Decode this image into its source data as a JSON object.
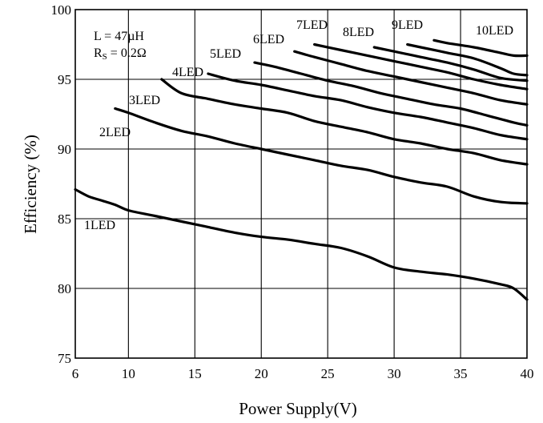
{
  "chart_data": {
    "type": "line",
    "title": "",
    "xlabel": "Power Supply(V)",
    "ylabel": "Efficiency (%)",
    "xlim": [
      6,
      40
    ],
    "ylim": [
      75,
      100
    ],
    "xticks": [
      6,
      10,
      15,
      20,
      25,
      30,
      35,
      40
    ],
    "yticks": [
      75,
      80,
      85,
      90,
      95,
      100
    ],
    "grid": true,
    "annotations": [
      "L = 47µH",
      "R",
      "S",
      " = 0.2Ω"
    ],
    "series": [
      {
        "name": "1LED",
        "x": [
          6,
          7,
          8,
          9,
          10,
          12,
          14,
          16,
          18,
          20,
          22,
          24,
          26,
          28,
          30,
          32,
          34,
          36,
          38,
          39,
          40
        ],
        "y": [
          87.1,
          86.6,
          86.3,
          86.0,
          85.6,
          85.2,
          84.8,
          84.4,
          84.0,
          83.7,
          83.5,
          83.2,
          82.9,
          82.3,
          81.5,
          81.2,
          81.0,
          80.7,
          80.3,
          80.0,
          79.2
        ]
      },
      {
        "name": "2LED",
        "x": [
          9,
          10,
          12,
          14,
          16,
          18,
          20,
          22,
          24,
          26,
          28,
          30,
          32,
          34,
          36,
          38,
          40
        ],
        "y": [
          92.9,
          92.6,
          91.9,
          91.3,
          90.9,
          90.4,
          90.0,
          89.6,
          89.2,
          88.8,
          88.5,
          88.0,
          87.6,
          87.3,
          86.6,
          86.2,
          86.1
        ]
      },
      {
        "name": "3LED",
        "x": [
          12.5,
          14,
          16,
          18,
          20,
          22,
          24,
          26,
          28,
          30,
          32,
          34,
          36,
          38,
          40
        ],
        "y": [
          95.0,
          94.0,
          93.6,
          93.2,
          92.9,
          92.6,
          92.0,
          91.6,
          91.2,
          90.7,
          90.4,
          90.0,
          89.7,
          89.2,
          88.9
        ]
      },
      {
        "name": "4LED",
        "x": [
          16,
          18,
          20,
          22,
          24,
          26,
          28,
          30,
          32,
          34,
          36,
          38,
          40
        ],
        "y": [
          95.4,
          94.9,
          94.6,
          94.2,
          93.8,
          93.5,
          93.0,
          92.6,
          92.3,
          91.9,
          91.5,
          91.0,
          90.7
        ]
      },
      {
        "name": "5LED",
        "x": [
          19.5,
          21,
          23,
          25,
          27,
          29,
          31,
          33,
          35,
          37,
          39,
          40
        ],
        "y": [
          96.2,
          95.9,
          95.4,
          94.9,
          94.5,
          94.0,
          93.6,
          93.2,
          92.9,
          92.4,
          91.9,
          91.7
        ]
      },
      {
        "name": "6LED",
        "x": [
          22.5,
          24,
          26,
          28,
          30,
          32,
          34,
          36,
          38,
          40
        ],
        "y": [
          97.0,
          96.6,
          96.1,
          95.6,
          95.2,
          94.8,
          94.4,
          94.0,
          93.5,
          93.2
        ]
      },
      {
        "name": "7LED",
        "x": [
          24,
          26,
          28,
          30,
          32,
          34,
          36,
          38,
          40
        ],
        "y": [
          97.5,
          97.1,
          96.7,
          96.3,
          95.9,
          95.5,
          95.0,
          94.6,
          94.3
        ]
      },
      {
        "name": "8LED",
        "x": [
          28.5,
          30,
          32,
          34,
          36,
          38,
          40
        ],
        "y": [
          97.3,
          97.0,
          96.6,
          96.2,
          95.7,
          95.1,
          94.9
        ]
      },
      {
        "name": "9LED",
        "x": [
          31,
          32,
          34,
          36,
          38,
          39,
          40
        ],
        "y": [
          97.5,
          97.3,
          96.9,
          96.5,
          95.8,
          95.4,
          95.3
        ]
      },
      {
        "name": "10LED",
        "x": [
          33,
          34,
          36,
          38,
          39,
          40
        ],
        "y": [
          97.8,
          97.6,
          97.3,
          96.9,
          96.7,
          96.7
        ]
      }
    ]
  }
}
